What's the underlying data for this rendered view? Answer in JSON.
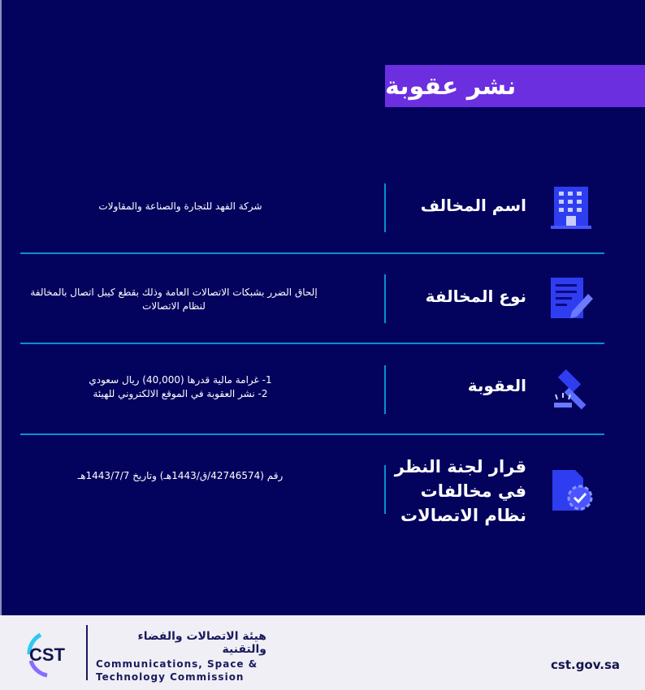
{
  "title": "نشر عقوبة",
  "rows": [
    {
      "label": "اسم المخالف",
      "value": "شركة الفهد للتجارة والصناعة والمقاولات",
      "icon": "building-icon"
    },
    {
      "label": "نوع المخالفة",
      "value": "إلحاق الضرر بشبكات الاتصالات العامة وذلك بقطع كيبل اتصال بالمخالفة لنظام الاتصالات",
      "icon": "document-edit-icon"
    },
    {
      "label": "العقوبة",
      "value_lines": [
        "1- غرامة مالية قدرها (40,000) ريال سعودي",
        "2- نشر العقوبة في الموقع الالكتروني للهيئة"
      ],
      "icon": "gavel-icon"
    },
    {
      "label": "قرار لجنة النظر في مخالفات نظام الاتصالات",
      "value": "رقم (42746574/ق/1443هـ) وتاريخ 1443/7/7هـ",
      "icon": "verified-document-icon"
    }
  ],
  "footer": {
    "logo_text": "CST",
    "org_ar": "هيئة الاتصالات والفضاء والتقنية",
    "org_en_1": "Communications, Space &",
    "org_en_2": "Technology Commission",
    "website": "cst.gov.sa"
  },
  "colors": {
    "background": "#03035e",
    "title_bar": "#6b2fe0",
    "divider": "#0a8fd0",
    "icon": "#2f3df0"
  }
}
